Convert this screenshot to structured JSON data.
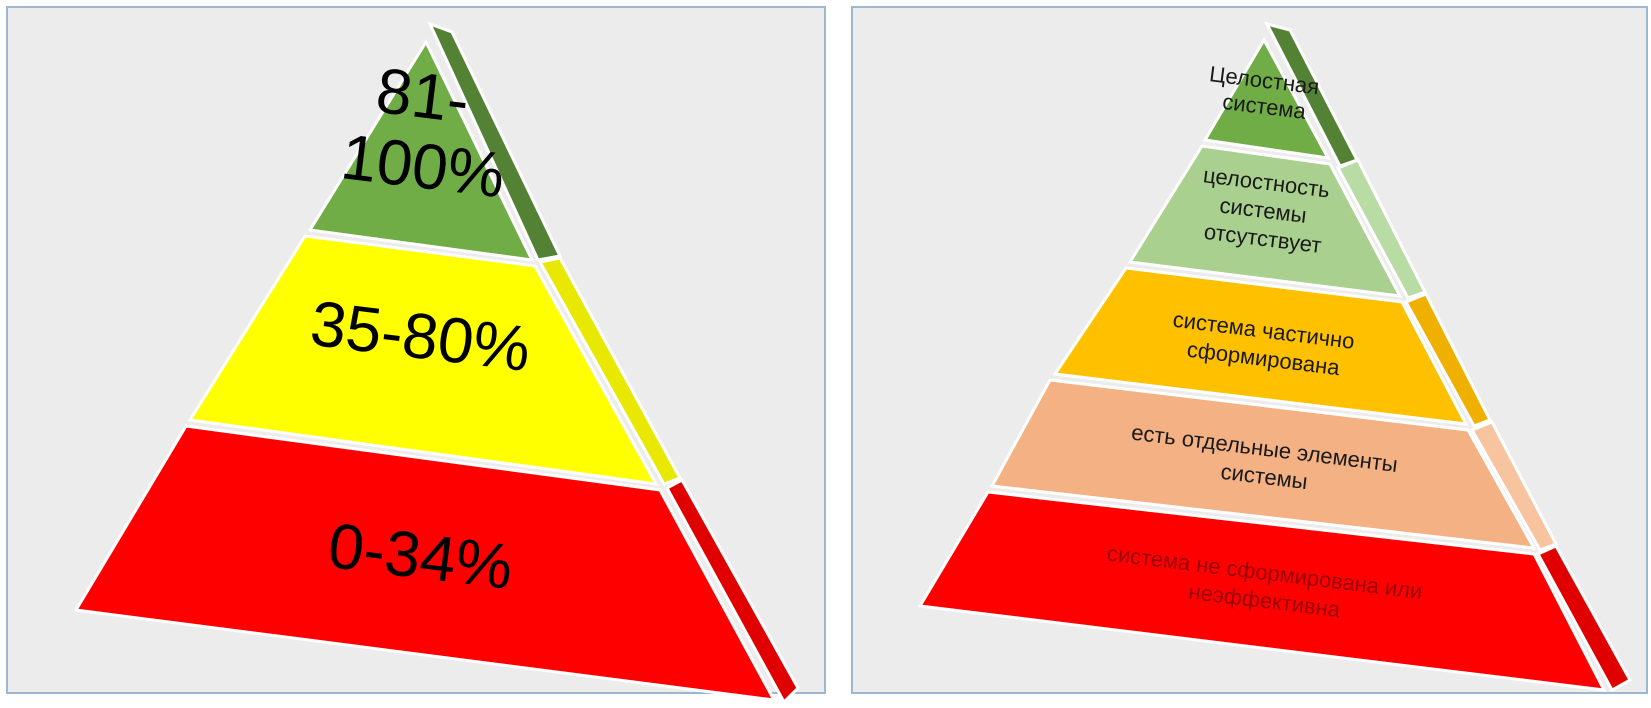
{
  "left_pyramid": {
    "levels": [
      {
        "lines": [
          "81-",
          "100%"
        ],
        "color": "#70ad47",
        "side_color": "#548235"
      },
      {
        "lines": [
          "35-80%"
        ],
        "color": "#ffff00",
        "side_color": "#e8e800"
      },
      {
        "lines": [
          "0-34%"
        ],
        "color": "#ff0000",
        "side_color": "#e00000"
      }
    ]
  },
  "right_pyramid": {
    "levels": [
      {
        "lines": [
          "Целостная",
          "система"
        ],
        "color": "#70ad47",
        "side_color": "#548235",
        "text_color": "#1a1a1a"
      },
      {
        "lines": [
          "целостность",
          "системы",
          "отсутствует"
        ],
        "color": "#a9d08e",
        "side_color": "#b9dba4",
        "text_color": "#1a1a1a"
      },
      {
        "lines": [
          "система частично",
          "сформирована"
        ],
        "color": "#ffc000",
        "side_color": "#f0b000",
        "text_color": "#1a1a1a"
      },
      {
        "lines": [
          "есть отдельные элементы",
          "системы"
        ],
        "color": "#f4b183",
        "side_color": "#f8c4a0",
        "text_color": "#1a1a1a"
      },
      {
        "lines": [
          "система не сформирована или",
          "неэффективна"
        ],
        "color": "#ff0000",
        "side_color": "#e00000",
        "text_color": "#990000"
      }
    ]
  }
}
